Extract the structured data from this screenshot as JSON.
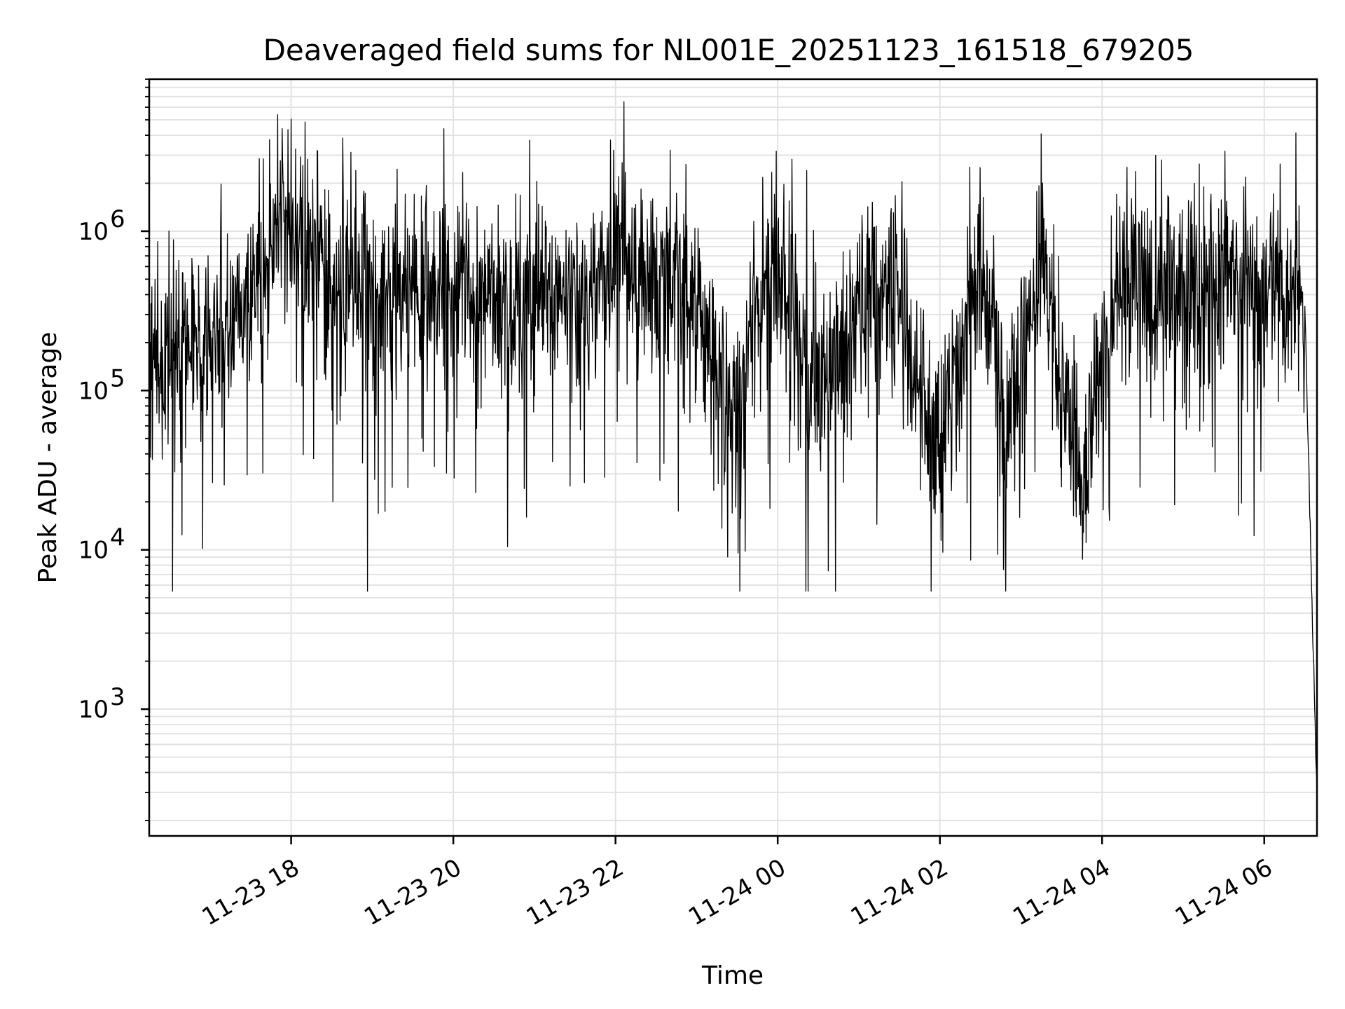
{
  "chart_data": {
    "type": "line",
    "title": "Deaveraged field sums for NL001E_20251123_161518_679205",
    "xlabel": "Time",
    "ylabel": "Peak ADU - average",
    "x_range": [
      "2025-11-23 16:15",
      "2025-11-24 06:39"
    ],
    "ylim": [
      160,
      9000000
    ],
    "y_scale": "log",
    "grid": true,
    "line_color": "#000000",
    "x_ticks": [
      {
        "value": "2025-11-23 18:00",
        "label": "11-23 18"
      },
      {
        "value": "2025-11-23 20:00",
        "label": "11-23 20"
      },
      {
        "value": "2025-11-23 22:00",
        "label": "11-23 22"
      },
      {
        "value": "2025-11-24 00:00",
        "label": "11-24 00"
      },
      {
        "value": "2025-11-24 02:00",
        "label": "11-24 02"
      },
      {
        "value": "2025-11-24 04:00",
        "label": "11-24 04"
      },
      {
        "value": "2025-11-24 06:00",
        "label": "11-24 06"
      }
    ],
    "y_ticks": [
      {
        "value": 1000,
        "base": "10",
        "exp": "3"
      },
      {
        "value": 10000,
        "base": "10",
        "exp": "4"
      },
      {
        "value": 100000,
        "base": "10",
        "exp": "5"
      },
      {
        "value": 1000000,
        "base": "10",
        "exp": "6"
      }
    ],
    "series": [
      {
        "values": [
          [
            "2025-11-23 16:15",
            150000
          ],
          [
            "2025-11-23 16:30",
            180000
          ],
          [
            "2025-11-23 16:45",
            200000
          ],
          [
            "2025-11-23 17:00",
            220000
          ],
          [
            "2025-11-23 17:15",
            300000
          ],
          [
            "2025-11-23 17:30",
            400000
          ],
          [
            "2025-11-23 17:45",
            800000
          ],
          [
            "2025-11-23 18:00",
            1100000
          ],
          [
            "2025-11-23 18:15",
            900000
          ],
          [
            "2025-11-23 18:30",
            500000
          ],
          [
            "2025-11-23 19:00",
            450000
          ],
          [
            "2025-11-23 19:30",
            420000
          ],
          [
            "2025-11-23 20:00",
            400000
          ],
          [
            "2025-11-23 20:30",
            380000
          ],
          [
            "2025-11-23 21:00",
            420000
          ],
          [
            "2025-11-23 21:30",
            350000
          ],
          [
            "2025-11-23 22:00",
            600000
          ],
          [
            "2025-11-23 22:30",
            500000
          ],
          [
            "2025-11-23 23:00",
            420000
          ],
          [
            "2025-11-23 23:25",
            60000
          ],
          [
            "2025-11-23 23:45",
            350000
          ],
          [
            "2025-11-24 00:00",
            700000
          ],
          [
            "2025-11-24 00:30",
            80000
          ],
          [
            "2025-11-24 01:00",
            350000
          ],
          [
            "2025-11-24 01:30",
            500000
          ],
          [
            "2025-11-24 01:55",
            40000
          ],
          [
            "2025-11-24 02:30",
            600000
          ],
          [
            "2025-11-24 02:50",
            60000
          ],
          [
            "2025-11-24 03:15",
            700000
          ],
          [
            "2025-11-24 03:45",
            30000
          ],
          [
            "2025-11-24 04:15",
            500000
          ],
          [
            "2025-11-24 05:00",
            400000
          ],
          [
            "2025-11-24 05:30",
            450000
          ],
          [
            "2025-11-24 06:00",
            400000
          ],
          [
            "2025-11-24 06:30",
            350000
          ],
          [
            "2025-11-24 06:39",
            260
          ]
        ]
      }
    ]
  }
}
